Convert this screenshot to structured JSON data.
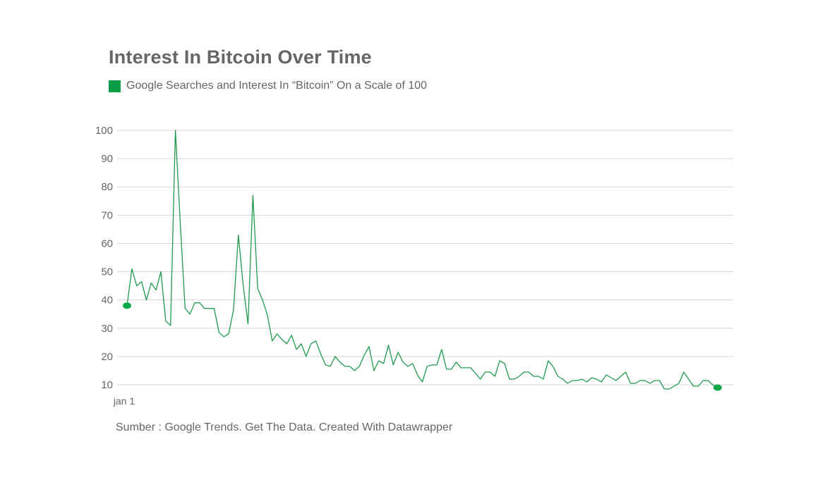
{
  "title": "Interest In Bitcoin Over Time",
  "legend": {
    "label": "Google Searches and Interest In “Bitcoin” On a Scale of 100",
    "color": "#0a9c47"
  },
  "source": "Sumber : Google Trends. Get The Data. Created With Datawrapper",
  "colors": {
    "line": "#1f9a4f",
    "marker": "#0aa84a",
    "grid": "#d6d6d6",
    "text": "#666666"
  },
  "chart_data": {
    "type": "line",
    "title": "Interest In Bitcoin Over Time",
    "xlabel": "",
    "ylabel": "",
    "x_tick_labels": [
      "jan 1"
    ],
    "y_ticks": [
      10,
      20,
      30,
      40,
      50,
      60,
      70,
      80,
      90,
      100
    ],
    "ylim": [
      10,
      100
    ],
    "grid": true,
    "legend_position": "top-left",
    "series": [
      {
        "name": "Google Searches and Interest In “Bitcoin” On a Scale of 100",
        "values": [
          38,
          51,
          45,
          46.5,
          40,
          46,
          43.5,
          50,
          32.5,
          31,
          100,
          67,
          37,
          35,
          39,
          39,
          37,
          37,
          37,
          28.5,
          27,
          28,
          36.5,
          63,
          45,
          31.5,
          77,
          44,
          40,
          34.5,
          25.5,
          28,
          26,
          24.5,
          27.5,
          22.5,
          24.5,
          20,
          24.5,
          25.5,
          21,
          17,
          16.5,
          20,
          18,
          16.5,
          16.5,
          15,
          16.5,
          20.5,
          23.5,
          15,
          18.5,
          17.5,
          24,
          17,
          21.5,
          18,
          16.5,
          17.5,
          13.5,
          11,
          16.5,
          17,
          17,
          22.5,
          15.5,
          15.5,
          18,
          16,
          16,
          16,
          14,
          12,
          14.5,
          14.5,
          13,
          18.5,
          17.5,
          12,
          12,
          13,
          14.5,
          14.5,
          13,
          13,
          12,
          18.5,
          16.5,
          13,
          12,
          10.5,
          11.5,
          11.5,
          12,
          11,
          12.5,
          12,
          11,
          13.5,
          12.5,
          11.5,
          13,
          14.5,
          10.5,
          10.5,
          11.5,
          11.5,
          10.5,
          11.5,
          11.5,
          8.5,
          8.5,
          9.5,
          10.5,
          14.5,
          12,
          9.5,
          9.5,
          11.5,
          11.5,
          10,
          9
        ]
      }
    ],
    "markers": [
      "first",
      "last"
    ]
  }
}
